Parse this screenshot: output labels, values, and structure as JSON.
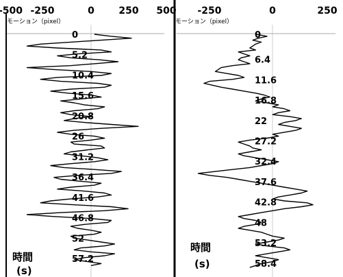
{
  "chart_data": [
    {
      "type": "line",
      "xlabel": "モーション（pixel）",
      "ylabel": "時間",
      "ylabel_unit": "(s)",
      "x_ticks": [
        "-500",
        "-250",
        "0",
        "250",
        "500"
      ],
      "xlim": [
        -500,
        500
      ],
      "y_ticks": [
        "0",
        "5.2",
        "10.4",
        "15.6",
        "20.8",
        "26",
        "31.2",
        "36.4",
        "41.6",
        "46.8",
        "52",
        "57.2"
      ],
      "ylim": [
        -1,
        61
      ],
      "series": [
        {
          "t": [
            0,
            0.5,
            1,
            1.5,
            2,
            2.5,
            3,
            3.5,
            4,
            4.5,
            5,
            5.5,
            6,
            6.5,
            7,
            7.5,
            8,
            8.5,
            9,
            9.5,
            10,
            10.5,
            11,
            11.5,
            12,
            12.5,
            13,
            13.5,
            14,
            14.5,
            15,
            15.5,
            16,
            16.5,
            17,
            17.5,
            18,
            18.5,
            19,
            19.5,
            20,
            20.5,
            21,
            21.5,
            22,
            22.5,
            23,
            23.5,
            24,
            24.5,
            25,
            25.5,
            26,
            26.5,
            27,
            27.5,
            28,
            28.5,
            29,
            29.5,
            30,
            30.5,
            31,
            31.5,
            32,
            32.5,
            33,
            33.5,
            34,
            34.5,
            35,
            35.5,
            36,
            36.5,
            37,
            37.5,
            38,
            38.5,
            39,
            39.5,
            40,
            40.5,
            41,
            41.5,
            42,
            42.5,
            43,
            43.5,
            44,
            44.5,
            45,
            45.5,
            46,
            46.5,
            47,
            47.5,
            48,
            48.5,
            49,
            49.5,
            50,
            50.5,
            51,
            51.5,
            52,
            52.5,
            53,
            53.5,
            54,
            54.5,
            55,
            55.5,
            56,
            56.5,
            57,
            57.5,
            58,
            58.5,
            59,
            59.5,
            60
          ],
          "x": [
            20,
            120,
            240,
            60,
            -120,
            -300,
            -380,
            -200,
            60,
            120,
            -80,
            -200,
            -120,
            50,
            160,
            20,
            -120,
            -380,
            -220,
            0,
            120,
            60,
            -200,
            -300,
            -180,
            40,
            120,
            80,
            -120,
            -240,
            -140,
            0,
            60,
            -60,
            -180,
            -100,
            -40,
            80,
            40,
            -100,
            -180,
            -120,
            0,
            -100,
            -160,
            -40,
            120,
            280,
            60,
            -100,
            -200,
            -120,
            20,
            80,
            0,
            -120,
            -100,
            60,
            80,
            -20,
            -120,
            -160,
            -60,
            40,
            100,
            20,
            -120,
            -240,
            -160,
            20,
            180,
            120,
            -80,
            -220,
            -180,
            -60,
            60,
            20,
            -120,
            -200,
            -40,
            80,
            120,
            40,
            -120,
            -240,
            -300,
            -100,
            120,
            220,
            80,
            -180,
            -380,
            -220,
            0,
            120,
            100,
            -40,
            -120,
            -80,
            0,
            60,
            20,
            -120,
            -100,
            -20,
            60,
            140,
            80,
            -60,
            -100,
            0,
            140,
            80,
            -40,
            -100,
            -20,
            60,
            0
          ]
        }
      ]
    },
    {
      "type": "line",
      "xlabel": "モーション（pixel）",
      "ylabel": "時間",
      "ylabel_unit": "(s)",
      "x_ticks": [
        "-250",
        "0",
        "250"
      ],
      "xlim": [
        -280,
        250
      ],
      "y_ticks": [
        "0",
        "6.4",
        "11.6",
        "16.8",
        "22",
        "27.2",
        "32.4",
        "37.6",
        "42.8",
        "48",
        "53.2",
        "58.4"
      ],
      "ylim": [
        -1,
        61
      ],
      "series": [
        {
          "t": [
            0,
            0.5,
            1,
            1.5,
            2,
            2.5,
            3,
            3.5,
            4,
            4.5,
            5,
            5.5,
            6,
            6.5,
            7,
            7.5,
            8,
            8.5,
            9,
            9.5,
            10,
            10.5,
            11,
            11.5,
            12,
            12.5,
            13,
            13.5,
            14,
            14.5,
            15,
            15.5,
            16,
            16.5,
            17,
            17.5,
            18,
            18.5,
            19,
            19.5,
            20,
            20.5,
            21,
            21.5,
            22,
            22.5,
            23,
            23.5,
            24,
            24.5,
            25,
            25.5,
            26,
            26.5,
            27,
            27.5,
            28,
            28.5,
            29,
            29.5,
            30,
            30.5,
            31,
            31.5,
            32,
            32.5,
            33,
            33.5,
            34,
            34.5,
            35,
            35.5,
            36,
            36.5,
            37,
            37.5,
            38,
            38.5,
            39,
            39.5,
            40,
            40.5,
            41,
            41.5,
            42,
            42.5,
            43,
            43.5,
            44,
            44.5,
            45,
            45.5,
            46,
            46.5,
            47,
            47.5,
            48,
            48.5,
            49,
            49.5,
            50,
            50.5,
            51,
            51.5,
            52,
            52.5,
            53,
            53.5,
            54,
            54.5,
            55,
            55.5,
            56,
            56.5,
            57,
            57.5,
            58,
            58.5,
            59,
            59.5,
            60
          ],
          "x": [
            0,
            40,
            10,
            -10,
            20,
            0,
            -10,
            -20,
            0,
            -60,
            -40,
            -20,
            -50,
            -60,
            -40,
            -20,
            -80,
            -120,
            -130,
            -140,
            -100,
            -60,
            -40,
            -80,
            -160,
            -180,
            -150,
            -120,
            -80,
            -40,
            0,
            30,
            50,
            20,
            0,
            40,
            80,
            60,
            100,
            120,
            80,
            60,
            120,
            160,
            140,
            100,
            80,
            120,
            160,
            140,
            100,
            60,
            80,
            40,
            -20,
            -60,
            -40,
            -20,
            -10,
            20,
            -20,
            -60,
            -40,
            0,
            40,
            80,
            60,
            20,
            -20,
            -80,
            -140,
            -200,
            -160,
            -100,
            -60,
            -20,
            20,
            60,
            100,
            140,
            180,
            160,
            120,
            80,
            60,
            100,
            180,
            200,
            160,
            100,
            60,
            20,
            -20,
            -60,
            -40,
            0,
            20,
            0,
            -40,
            -60,
            -20,
            20,
            40,
            60,
            100,
            80,
            40,
            0,
            40,
            100,
            120,
            80,
            40,
            0,
            40,
            80,
            60,
            20,
            0,
            -20
          ]
        }
      ]
    }
  ]
}
